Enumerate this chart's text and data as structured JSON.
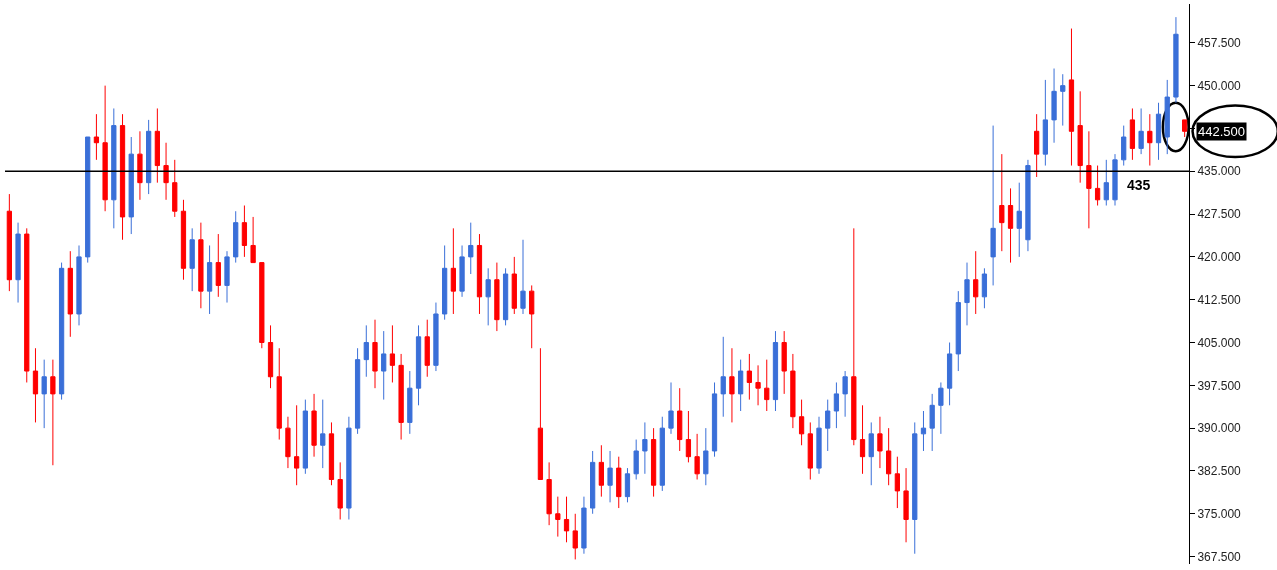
{
  "chart_data": {
    "type": "candlestick",
    "categories": [
      null,
      null,
      null,
      null,
      null,
      null,
      null,
      null,
      null,
      null,
      null,
      null,
      null,
      null,
      null,
      null,
      null,
      null,
      null,
      null,
      null,
      null,
      null,
      null,
      null,
      null,
      null,
      null,
      null,
      null,
      null,
      null,
      null,
      null,
      null,
      null,
      null,
      null,
      null,
      null,
      null,
      null,
      null,
      null,
      null,
      null,
      null,
      null,
      null,
      null,
      null,
      null,
      null,
      null,
      null,
      null,
      null,
      null,
      null,
      null,
      null,
      null,
      null,
      null,
      null,
      null,
      null,
      null,
      null,
      null,
      null,
      null,
      null,
      null,
      null,
      null,
      null,
      null,
      null,
      null,
      null,
      null,
      null,
      null,
      null,
      null,
      null,
      null,
      null,
      null,
      null,
      null,
      null,
      null,
      null,
      null,
      null,
      null,
      null,
      null,
      null,
      null,
      null,
      null,
      null,
      null,
      null,
      null,
      null,
      null,
      null,
      null,
      null,
      null,
      null,
      null,
      null,
      null,
      null,
      null,
      null,
      null,
      null,
      null,
      null,
      null,
      null,
      null,
      null,
      null,
      null,
      null,
      null,
      null,
      null,
      null
    ],
    "ohlc": [
      [
        428,
        431,
        414,
        416
      ],
      [
        416,
        426,
        412,
        424
      ],
      [
        424,
        425,
        398,
        400
      ],
      [
        400,
        404,
        391,
        396
      ],
      [
        396,
        402,
        390,
        399
      ],
      [
        399,
        402,
        383.5,
        396
      ],
      [
        396,
        419,
        395,
        418
      ],
      [
        418,
        421,
        406,
        410
      ],
      [
        410,
        422,
        408,
        420
      ],
      [
        420,
        441,
        419,
        441
      ],
      [
        441,
        445,
        437,
        440
      ],
      [
        440,
        450,
        428,
        430
      ],
      [
        430,
        446,
        425,
        443
      ],
      [
        443,
        445,
        423,
        427
      ],
      [
        427,
        441,
        424,
        438
      ],
      [
        438,
        442,
        430,
        433
      ],
      [
        433,
        444,
        431,
        442
      ],
      [
        442,
        446,
        433,
        436
      ],
      [
        436,
        440,
        430,
        433
      ],
      [
        433,
        437,
        427,
        428
      ],
      [
        428,
        430,
        416,
        418
      ],
      [
        418,
        425,
        414,
        423
      ],
      [
        423,
        426,
        411,
        414
      ],
      [
        414,
        422,
        410,
        419
      ],
      [
        419,
        424,
        413,
        415
      ],
      [
        415,
        421,
        412,
        420
      ],
      [
        420,
        428,
        419,
        426
      ],
      [
        426,
        429,
        420,
        422
      ],
      [
        422,
        427,
        419,
        419
      ],
      [
        419,
        419,
        404,
        405
      ],
      [
        405,
        408,
        397,
        399
      ],
      [
        399,
        404,
        388,
        390
      ],
      [
        390,
        392,
        383,
        385
      ],
      [
        385,
        394,
        380,
        383
      ],
      [
        383,
        395,
        382,
        393
      ],
      [
        393,
        396,
        385,
        387
      ],
      [
        387,
        395,
        383,
        389
      ],
      [
        389,
        391,
        380,
        381
      ],
      [
        381,
        384,
        374,
        376
      ],
      [
        376,
        392,
        374,
        390
      ],
      [
        390,
        404,
        389,
        402
      ],
      [
        402,
        408,
        399,
        405
      ],
      [
        405,
        409,
        397,
        400
      ],
      [
        400,
        407,
        395,
        403
      ],
      [
        403,
        408,
        398,
        401
      ],
      [
        401,
        403,
        388,
        391
      ],
      [
        391,
        400,
        389,
        397
      ],
      [
        397,
        408,
        394,
        406
      ],
      [
        406,
        409,
        399,
        401
      ],
      [
        401,
        412,
        400,
        410
      ],
      [
        410,
        422,
        409,
        418
      ],
      [
        418,
        425,
        410,
        414
      ],
      [
        414,
        422,
        413,
        420
      ],
      [
        420,
        426,
        417,
        422
      ],
      [
        422,
        424,
        410,
        413
      ],
      [
        413,
        418,
        408,
        416
      ],
      [
        416,
        419,
        407,
        409
      ],
      [
        409,
        418,
        408,
        417
      ],
      [
        417,
        420,
        410,
        411
      ],
      [
        411,
        423,
        410,
        414
      ],
      [
        414,
        415,
        404,
        410
      ],
      [
        390,
        404,
        381,
        381
      ],
      [
        381,
        384,
        373,
        375
      ],
      [
        375,
        378,
        371,
        374
      ],
      [
        374,
        378,
        370,
        372
      ],
      [
        372,
        375,
        367,
        369
      ],
      [
        369,
        378,
        368,
        376
      ],
      [
        376,
        386,
        375,
        384
      ],
      [
        384,
        387,
        378,
        380
      ],
      [
        380,
        386,
        377,
        383
      ],
      [
        383,
        385,
        376,
        378
      ],
      [
        378,
        383,
        377,
        382
      ],
      [
        382,
        388,
        381,
        386
      ],
      [
        386,
        391,
        382,
        388
      ],
      [
        388,
        390,
        378,
        380
      ],
      [
        380,
        392,
        379,
        390
      ],
      [
        390,
        398,
        389,
        393
      ],
      [
        393,
        397,
        386,
        388
      ],
      [
        388,
        393,
        384,
        385
      ],
      [
        385,
        389,
        381,
        382
      ],
      [
        382,
        390,
        380,
        386
      ],
      [
        386,
        398,
        385,
        396
      ],
      [
        396,
        406,
        392,
        399
      ],
      [
        399,
        404,
        391,
        396
      ],
      [
        396,
        402,
        393,
        400
      ],
      [
        400,
        403,
        395,
        398
      ],
      [
        398,
        401,
        394,
        397
      ],
      [
        397,
        402,
        393,
        395
      ],
      [
        395,
        407,
        393,
        405
      ],
      [
        405,
        407,
        396,
        400
      ],
      [
        400,
        403,
        390,
        392
      ],
      [
        392,
        395,
        387,
        389
      ],
      [
        389,
        391,
        381,
        383
      ],
      [
        383,
        392,
        382,
        390
      ],
      [
        390,
        395,
        386,
        393
      ],
      [
        393,
        398,
        390,
        396
      ],
      [
        396,
        400,
        392,
        399
      ],
      [
        399,
        425,
        387,
        388
      ],
      [
        388,
        394,
        382,
        385
      ],
      [
        385,
        391,
        380,
        389
      ],
      [
        389,
        392,
        383,
        386
      ],
      [
        386,
        390,
        380,
        382
      ],
      [
        382,
        385,
        376,
        379
      ],
      [
        379,
        383,
        370,
        374
      ],
      [
        374,
        391,
        368,
        389
      ],
      [
        389,
        393,
        386,
        390
      ],
      [
        390,
        396,
        386,
        394
      ],
      [
        394,
        398,
        389,
        397
      ],
      [
        397,
        405,
        394,
        403
      ],
      [
        403,
        414,
        400,
        412
      ],
      [
        412,
        419,
        408,
        416
      ],
      [
        416,
        421,
        410,
        413
      ],
      [
        413,
        418,
        411,
        417
      ],
      [
        420,
        443,
        415,
        425
      ],
      [
        429,
        438,
        421,
        426
      ],
      [
        429,
        432,
        419,
        425
      ],
      [
        425,
        433,
        420,
        428
      ],
      [
        423,
        437,
        421,
        436
      ],
      [
        442,
        445,
        434,
        438
      ],
      [
        438,
        451,
        436,
        444
      ],
      [
        444,
        453,
        440,
        449
      ],
      [
        449,
        452,
        443,
        450
      ],
      [
        451,
        460,
        436,
        442
      ],
      [
        443,
        449,
        433,
        436
      ],
      [
        436,
        442,
        425,
        432
      ],
      [
        432,
        436,
        429,
        430
      ],
      [
        430,
        437,
        429,
        433
      ],
      [
        430,
        438,
        429,
        437
      ],
      [
        437,
        443,
        436,
        441
      ],
      [
        444,
        446,
        437,
        439
      ],
      [
        439,
        446,
        438,
        442
      ],
      [
        442,
        445,
        436,
        440
      ],
      [
        440,
        447,
        437,
        445
      ],
      [
        441,
        451,
        438,
        448
      ],
      [
        448,
        462,
        447,
        459
      ],
      [
        444,
        444,
        441,
        442
      ]
    ],
    "colors": [
      "#ff0000",
      "#3a6fd8",
      "#ff0000",
      "#ff0000",
      "#3a6fd8",
      "#ff0000",
      "#3a6fd8",
      "#ff0000",
      "#3a6fd8",
      "#3a6fd8",
      "#ff0000",
      "#ff0000",
      "#3a6fd8",
      "#ff0000",
      "#3a6fd8",
      "#ff0000",
      "#3a6fd8",
      "#ff0000",
      "#ff0000",
      "#ff0000",
      "#ff0000",
      "#3a6fd8",
      "#ff0000",
      "#3a6fd8",
      "#ff0000",
      "#3a6fd8",
      "#3a6fd8",
      "#ff0000",
      "#ff0000",
      "#ff0000",
      "#ff0000",
      "#ff0000",
      "#ff0000",
      "#ff0000",
      "#3a6fd8",
      "#ff0000",
      "#3a6fd8",
      "#ff0000",
      "#ff0000",
      "#3a6fd8",
      "#3a6fd8",
      "#3a6fd8",
      "#ff0000",
      "#3a6fd8",
      "#ff0000",
      "#ff0000",
      "#3a6fd8",
      "#3a6fd8",
      "#ff0000",
      "#3a6fd8",
      "#3a6fd8",
      "#ff0000",
      "#3a6fd8",
      "#3a6fd8",
      "#ff0000",
      "#3a6fd8",
      "#ff0000",
      "#3a6fd8",
      "#ff0000",
      "#3a6fd8",
      "#ff0000",
      "#ff0000",
      "#ff0000",
      "#ff0000",
      "#ff0000",
      "#ff0000",
      "#3a6fd8",
      "#3a6fd8",
      "#ff0000",
      "#3a6fd8",
      "#ff0000",
      "#3a6fd8",
      "#3a6fd8",
      "#3a6fd8",
      "#ff0000",
      "#3a6fd8",
      "#3a6fd8",
      "#ff0000",
      "#ff0000",
      "#ff0000",
      "#3a6fd8",
      "#3a6fd8",
      "#3a6fd8",
      "#ff0000",
      "#3a6fd8",
      "#ff0000",
      "#ff0000",
      "#ff0000",
      "#3a6fd8",
      "#ff0000",
      "#ff0000",
      "#ff0000",
      "#ff0000",
      "#3a6fd8",
      "#3a6fd8",
      "#3a6fd8",
      "#3a6fd8",
      "#ff0000",
      "#ff0000",
      "#3a6fd8",
      "#ff0000",
      "#ff0000",
      "#ff0000",
      "#ff0000",
      "#3a6fd8",
      "#3a6fd8",
      "#3a6fd8",
      "#3a6fd8",
      "#3a6fd8",
      "#3a6fd8",
      "#3a6fd8",
      "#ff0000",
      "#3a6fd8",
      "#3a6fd8",
      "#ff0000",
      "#ff0000",
      "#3a6fd8",
      "#3a6fd8",
      "#ff0000",
      "#3a6fd8",
      "#3a6fd8",
      "#3a6fd8",
      "#ff0000",
      "#ff0000",
      "#ff0000",
      "#ff0000",
      "#3a6fd8",
      "#3a6fd8",
      "#3a6fd8",
      "#ff0000",
      "#3a6fd8",
      "#ff0000",
      "#3a6fd8",
      "#3a6fd8",
      "#3a6fd8",
      "#ff0000"
    ],
    "ylim": [
      366.2,
      464.3
    ],
    "yticks": [
      {
        "value": 367.5,
        "label": "367.500"
      },
      {
        "value": 375,
        "label": "375.000"
      },
      {
        "value": 382.5,
        "label": "382.500"
      },
      {
        "value": 390,
        "label": "390.000"
      },
      {
        "value": 397.5,
        "label": "397.500"
      },
      {
        "value": 405,
        "label": "405.000"
      },
      {
        "value": 412.5,
        "label": "412.500"
      },
      {
        "value": 420,
        "label": "420.000"
      },
      {
        "value": 427.5,
        "label": "427.500"
      },
      {
        "value": 435,
        "label": "435.000"
      },
      {
        "value": 442.5,
        "label": null
      },
      {
        "value": 450,
        "label": "450.000"
      },
      {
        "value": 457.5,
        "label": "457.500"
      }
    ],
    "tick_labels": "y",
    "ref_lines": [
      {
        "axis": "y",
        "value": 435,
        "label": "435",
        "color": "#000000"
      }
    ],
    "annotations": [
      "442.500"
    ]
  }
}
